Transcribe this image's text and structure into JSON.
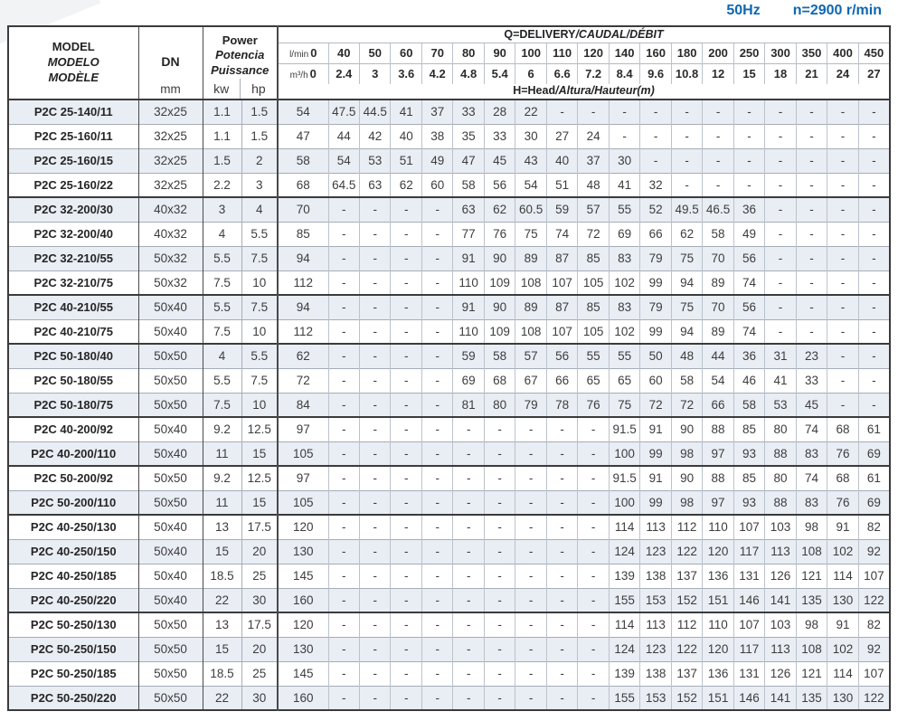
{
  "operating": {
    "frequency": "50Hz",
    "speed": "n=2900 r/min"
  },
  "colors": {
    "accent_blue": "#0e67b2",
    "row_band": "#e9edf4"
  },
  "columns": {
    "model": [
      "MODEL",
      "MODELO",
      "MODÈLE"
    ],
    "dn": {
      "label": "DN",
      "unit": "mm"
    },
    "power": {
      "labels": [
        "Power",
        "Potencia",
        "Puissance"
      ],
      "units": [
        "kw",
        "hp"
      ]
    },
    "q_header_parts": [
      "Q=DELIVERY",
      "/CAUDAL/DÉBIT"
    ],
    "h_header_parts": [
      "H=Head",
      "/Altura/Hauteur(m)"
    ],
    "flow_lmin": {
      "label": "l/min",
      "values": [
        "0",
        "40",
        "50",
        "60",
        "70",
        "80",
        "90",
        "100",
        "110",
        "120",
        "140",
        "160",
        "180",
        "200",
        "250",
        "300",
        "350",
        "400",
        "450"
      ]
    },
    "flow_m3h": {
      "label": "m³/h",
      "values": [
        "0",
        "2.4",
        "3",
        "3.6",
        "4.2",
        "4.8",
        "5.4",
        "6",
        "6.6",
        "7.2",
        "8.4",
        "9.6",
        "10.8",
        "12",
        "15",
        "18",
        "21",
        "24",
        "27"
      ]
    }
  },
  "group_start_rows": [
    4,
    8,
    10,
    13,
    15,
    17,
    21
  ],
  "rows": [
    {
      "model": "P2C 25-140/11",
      "dn": "32x25",
      "kw": "1.1",
      "hp": "1.5",
      "head": [
        "54",
        "47.5",
        "44.5",
        "41",
        "37",
        "33",
        "28",
        "22",
        "-",
        "-",
        "-",
        "-",
        "-",
        "-",
        "-",
        "-",
        "-",
        "-",
        "-"
      ]
    },
    {
      "model": "P2C 25-160/11",
      "dn": "32x25",
      "kw": "1.1",
      "hp": "1.5",
      "head": [
        "47",
        "44",
        "42",
        "40",
        "38",
        "35",
        "33",
        "30",
        "27",
        "24",
        "-",
        "-",
        "-",
        "-",
        "-",
        "-",
        "-",
        "-",
        "-"
      ]
    },
    {
      "model": "P2C 25-160/15",
      "dn": "32x25",
      "kw": "1.5",
      "hp": "2",
      "head": [
        "58",
        "54",
        "53",
        "51",
        "49",
        "47",
        "45",
        "43",
        "40",
        "37",
        "30",
        "-",
        "-",
        "-",
        "-",
        "-",
        "-",
        "-",
        "-"
      ]
    },
    {
      "model": "P2C 25-160/22",
      "dn": "32x25",
      "kw": "2.2",
      "hp": "3",
      "head": [
        "68",
        "64.5",
        "63",
        "62",
        "60",
        "58",
        "56",
        "54",
        "51",
        "48",
        "41",
        "32",
        "-",
        "-",
        "-",
        "-",
        "-",
        "-",
        "-"
      ]
    },
    {
      "model": "P2C 32-200/30",
      "dn": "40x32",
      "kw": "3",
      "hp": "4",
      "head": [
        "70",
        "-",
        "-",
        "-",
        "-",
        "63",
        "62",
        "60.5",
        "59",
        "57",
        "55",
        "52",
        "49.5",
        "46.5",
        "36",
        "-",
        "-",
        "-",
        "-"
      ]
    },
    {
      "model": "P2C 32-200/40",
      "dn": "40x32",
      "kw": "4",
      "hp": "5.5",
      "head": [
        "85",
        "-",
        "-",
        "-",
        "-",
        "77",
        "76",
        "75",
        "74",
        "72",
        "69",
        "66",
        "62",
        "58",
        "49",
        "-",
        "-",
        "-",
        "-"
      ]
    },
    {
      "model": "P2C 32-210/55",
      "dn": "50x32",
      "kw": "5.5",
      "hp": "7.5",
      "head": [
        "94",
        "-",
        "-",
        "-",
        "-",
        "91",
        "90",
        "89",
        "87",
        "85",
        "83",
        "79",
        "75",
        "70",
        "56",
        "-",
        "-",
        "-",
        "-"
      ]
    },
    {
      "model": "P2C 32-210/75",
      "dn": "50x32",
      "kw": "7.5",
      "hp": "10",
      "head": [
        "112",
        "-",
        "-",
        "-",
        "-",
        "110",
        "109",
        "108",
        "107",
        "105",
        "102",
        "99",
        "94",
        "89",
        "74",
        "-",
        "-",
        "-",
        "-"
      ]
    },
    {
      "model": "P2C 40-210/55",
      "dn": "50x40",
      "kw": "5.5",
      "hp": "7.5",
      "head": [
        "94",
        "-",
        "-",
        "-",
        "-",
        "91",
        "90",
        "89",
        "87",
        "85",
        "83",
        "79",
        "75",
        "70",
        "56",
        "-",
        "-",
        "-",
        "-"
      ]
    },
    {
      "model": "P2C 40-210/75",
      "dn": "50x40",
      "kw": "7.5",
      "hp": "10",
      "head": [
        "112",
        "-",
        "-",
        "-",
        "-",
        "110",
        "109",
        "108",
        "107",
        "105",
        "102",
        "99",
        "94",
        "89",
        "74",
        "-",
        "-",
        "-",
        "-"
      ]
    },
    {
      "model": "P2C 50-180/40",
      "dn": "50x50",
      "kw": "4",
      "hp": "5.5",
      "head": [
        "62",
        "-",
        "-",
        "-",
        "-",
        "59",
        "58",
        "57",
        "56",
        "55",
        "55",
        "50",
        "48",
        "44",
        "36",
        "31",
        "23",
        "-",
        "-"
      ]
    },
    {
      "model": "P2C 50-180/55",
      "dn": "50x50",
      "kw": "5.5",
      "hp": "7.5",
      "head": [
        "72",
        "-",
        "-",
        "-",
        "-",
        "69",
        "68",
        "67",
        "66",
        "65",
        "65",
        "60",
        "58",
        "54",
        "46",
        "41",
        "33",
        "-",
        "-"
      ]
    },
    {
      "model": "P2C 50-180/75",
      "dn": "50x50",
      "kw": "7.5",
      "hp": "10",
      "head": [
        "84",
        "-",
        "-",
        "-",
        "-",
        "81",
        "80",
        "79",
        "78",
        "76",
        "75",
        "72",
        "72",
        "66",
        "58",
        "53",
        "45",
        "-",
        "-"
      ]
    },
    {
      "model": "P2C 40-200/92",
      "dn": "50x40",
      "kw": "9.2",
      "hp": "12.5",
      "head": [
        "97",
        "-",
        "-",
        "-",
        "-",
        "-",
        "-",
        "-",
        "-",
        "-",
        "91.5",
        "91",
        "90",
        "88",
        "85",
        "80",
        "74",
        "68",
        "61"
      ]
    },
    {
      "model": "P2C 40-200/110",
      "dn": "50x40",
      "kw": "11",
      "hp": "15",
      "head": [
        "105",
        "-",
        "-",
        "-",
        "-",
        "-",
        "-",
        "-",
        "-",
        "-",
        "100",
        "99",
        "98",
        "97",
        "93",
        "88",
        "83",
        "76",
        "69"
      ]
    },
    {
      "model": "P2C 50-200/92",
      "dn": "50x50",
      "kw": "9.2",
      "hp": "12.5",
      "head": [
        "97",
        "-",
        "-",
        "-",
        "-",
        "-",
        "-",
        "-",
        "-",
        "-",
        "91.5",
        "91",
        "90",
        "88",
        "85",
        "80",
        "74",
        "68",
        "61"
      ]
    },
    {
      "model": "P2C 50-200/110",
      "dn": "50x50",
      "kw": "11",
      "hp": "15",
      "head": [
        "105",
        "-",
        "-",
        "-",
        "-",
        "-",
        "-",
        "-",
        "-",
        "-",
        "100",
        "99",
        "98",
        "97",
        "93",
        "88",
        "83",
        "76",
        "69"
      ]
    },
    {
      "model": "P2C 40-250/130",
      "dn": "50x40",
      "kw": "13",
      "hp": "17.5",
      "head": [
        "120",
        "-",
        "-",
        "-",
        "-",
        "-",
        "-",
        "-",
        "-",
        "-",
        "114",
        "113",
        "112",
        "110",
        "107",
        "103",
        "98",
        "91",
        "82"
      ]
    },
    {
      "model": "P2C 40-250/150",
      "dn": "50x40",
      "kw": "15",
      "hp": "20",
      "head": [
        "130",
        "-",
        "-",
        "-",
        "-",
        "-",
        "-",
        "-",
        "-",
        "-",
        "124",
        "123",
        "122",
        "120",
        "117",
        "113",
        "108",
        "102",
        "92"
      ]
    },
    {
      "model": "P2C 40-250/185",
      "dn": "50x40",
      "kw": "18.5",
      "hp": "25",
      "head": [
        "145",
        "-",
        "-",
        "-",
        "-",
        "-",
        "-",
        "-",
        "-",
        "-",
        "139",
        "138",
        "137",
        "136",
        "131",
        "126",
        "121",
        "114",
        "107"
      ]
    },
    {
      "model": "P2C 40-250/220",
      "dn": "50x40",
      "kw": "22",
      "hp": "30",
      "head": [
        "160",
        "-",
        "-",
        "-",
        "-",
        "-",
        "-",
        "-",
        "-",
        "-",
        "155",
        "153",
        "152",
        "151",
        "146",
        "141",
        "135",
        "130",
        "122"
      ]
    },
    {
      "model": "P2C 50-250/130",
      "dn": "50x50",
      "kw": "13",
      "hp": "17.5",
      "head": [
        "120",
        "-",
        "-",
        "-",
        "-",
        "-",
        "-",
        "-",
        "-",
        "-",
        "114",
        "113",
        "112",
        "110",
        "107",
        "103",
        "98",
        "91",
        "82"
      ]
    },
    {
      "model": "P2C 50-250/150",
      "dn": "50x50",
      "kw": "15",
      "hp": "20",
      "head": [
        "130",
        "-",
        "-",
        "-",
        "-",
        "-",
        "-",
        "-",
        "-",
        "-",
        "124",
        "123",
        "122",
        "120",
        "117",
        "113",
        "108",
        "102",
        "92"
      ]
    },
    {
      "model": "P2C 50-250/185",
      "dn": "50x50",
      "kw": "18.5",
      "hp": "25",
      "head": [
        "145",
        "-",
        "-",
        "-",
        "-",
        "-",
        "-",
        "-",
        "-",
        "-",
        "139",
        "138",
        "137",
        "136",
        "131",
        "126",
        "121",
        "114",
        "107"
      ]
    },
    {
      "model": "P2C 50-250/220",
      "dn": "50x50",
      "kw": "22",
      "hp": "30",
      "head": [
        "160",
        "-",
        "-",
        "-",
        "-",
        "-",
        "-",
        "-",
        "-",
        "-",
        "155",
        "153",
        "152",
        "151",
        "146",
        "141",
        "135",
        "130",
        "122"
      ]
    }
  ]
}
